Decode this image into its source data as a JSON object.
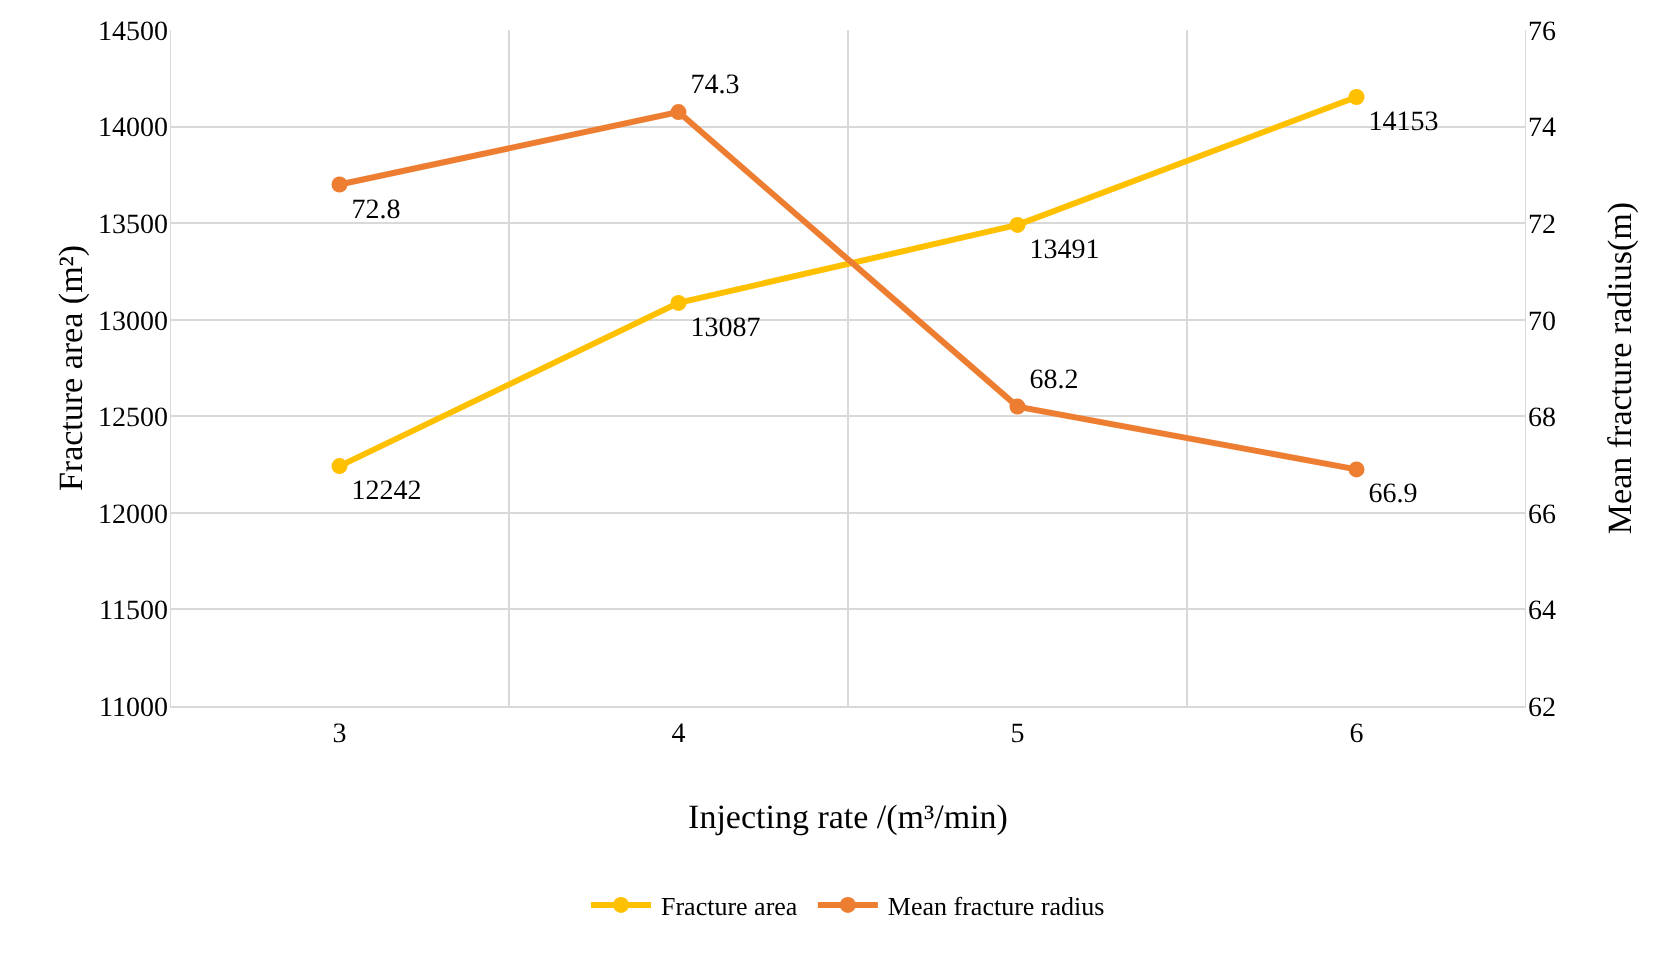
{
  "chart_data": {
    "type": "line",
    "xlabel": "Injecting rate /(m³/min)",
    "ylabel": "Fracture area (m²)",
    "y2label": "Mean fracture radius(m)",
    "categories": [
      "3",
      "4",
      "5",
      "6"
    ],
    "series": [
      {
        "name": "Fracture area",
        "color": "#ffc000",
        "values": [
          12242,
          13087,
          13491,
          14153
        ]
      },
      {
        "name": "Mean fracture radius",
        "color": "#ed7d31",
        "values": [
          72.8,
          74.3,
          68.2,
          66.9
        ],
        "axis": "y2"
      }
    ],
    "ylim": [
      11000,
      14500
    ],
    "yticks": [
      11000,
      11500,
      12000,
      12500,
      13000,
      13500,
      14000,
      14500
    ],
    "y2lim": [
      62,
      76
    ],
    "y2ticks": [
      62,
      64,
      66,
      68,
      70,
      72,
      74,
      76
    ],
    "data_labels": true,
    "grid": true,
    "legend": "bottom",
    "marker": "circle",
    "line_style": "solid"
  }
}
